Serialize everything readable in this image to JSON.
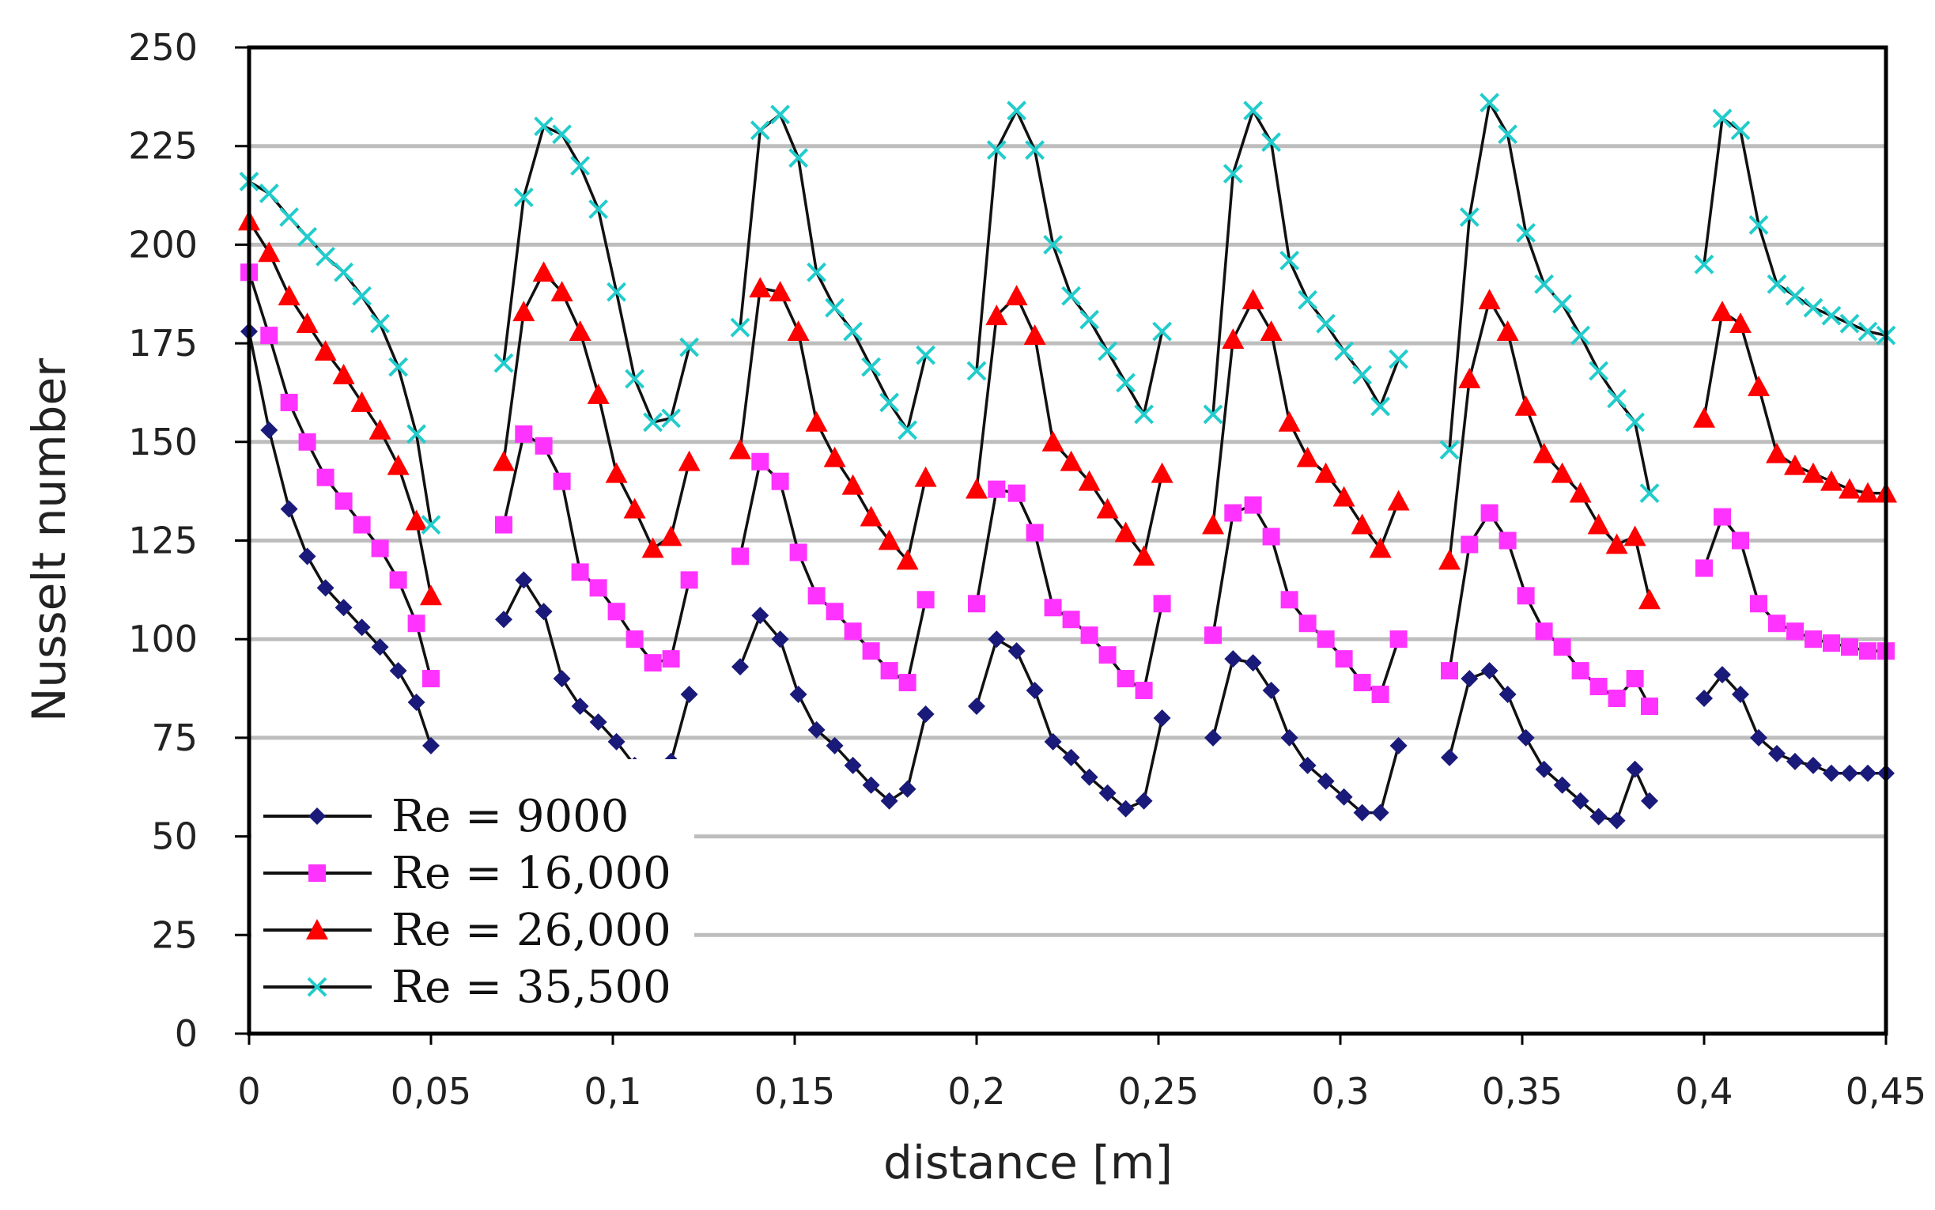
{
  "chart_data": {
    "type": "line",
    "title": "",
    "xlabel": "distance  [m]",
    "ylabel": "Nusselt number",
    "xlim": [
      0,
      0.45
    ],
    "ylim": [
      0,
      250
    ],
    "x_ticks": [
      0,
      0.05,
      0.1,
      0.15,
      0.2,
      0.25,
      0.3,
      0.35,
      0.4,
      0.45
    ],
    "x_tick_labels": [
      "0",
      "0,05",
      "0,1",
      "0,15",
      "0,2",
      "0,25",
      "0,3",
      "0,35",
      "0,4",
      "0,45"
    ],
    "y_ticks": [
      0,
      25,
      50,
      75,
      100,
      125,
      150,
      175,
      200,
      225,
      250
    ],
    "y_tick_labels": [
      "0",
      "25",
      "50",
      "75",
      "100",
      "125",
      "150",
      "175",
      "200",
      "225",
      "250"
    ],
    "grid": "horizontal",
    "legend_position": "bottom-left",
    "x_segments": [
      [
        0,
        0.0055,
        0.011,
        0.016,
        0.021,
        0.026,
        0.031,
        0.036,
        0.041,
        0.046,
        0.05
      ],
      [
        0.07,
        0.0755,
        0.081,
        0.086,
        0.091,
        0.096,
        0.101,
        0.106,
        0.111,
        0.116,
        0.121
      ],
      [
        0.135,
        0.1405,
        0.146,
        0.151,
        0.156,
        0.161,
        0.166,
        0.171,
        0.176,
        0.181,
        0.186
      ],
      [
        0.2,
        0.2055,
        0.211,
        0.216,
        0.221,
        0.226,
        0.231,
        0.236,
        0.241,
        0.246,
        0.251
      ],
      [
        0.265,
        0.2705,
        0.276,
        0.281,
        0.286,
        0.291,
        0.296,
        0.301,
        0.306,
        0.311,
        0.316
      ],
      [
        0.33,
        0.3355,
        0.341,
        0.346,
        0.351,
        0.356,
        0.361,
        0.366,
        0.371,
        0.376,
        0.381,
        0.385
      ],
      [
        0.4,
        0.405,
        0.41,
        0.415,
        0.42,
        0.425,
        0.43,
        0.435,
        0.44,
        0.445,
        0.45
      ]
    ],
    "series": [
      {
        "name": "Re = 9000",
        "color": "#1a1a7a",
        "marker": "diamond",
        "segments": [
          [
            178,
            153,
            133,
            121,
            113,
            108,
            103,
            98,
            92,
            84,
            73
          ],
          [
            105,
            115,
            107,
            90,
            83,
            79,
            74,
            68,
            66,
            69,
            86
          ],
          [
            93,
            106,
            100,
            86,
            77,
            73,
            68,
            63,
            59,
            62,
            81
          ],
          [
            83,
            100,
            97,
            87,
            74,
            70,
            65,
            61,
            57,
            59,
            80
          ],
          [
            75,
            95,
            94,
            87,
            75,
            68,
            64,
            60,
            56,
            56,
            73
          ],
          [
            70,
            90,
            92,
            86,
            75,
            67,
            63,
            59,
            55,
            54,
            67,
            59
          ],
          [
            85,
            91,
            86,
            75,
            71,
            69,
            68,
            66,
            66,
            66,
            66
          ]
        ]
      },
      {
        "name": "Re = 16,000",
        "color": "#ff33ff",
        "marker": "square",
        "segments": [
          [
            193,
            177,
            160,
            150,
            141,
            135,
            129,
            123,
            115,
            104,
            90
          ],
          [
            129,
            152,
            149,
            140,
            117,
            113,
            107,
            100,
            94,
            95,
            115
          ],
          [
            121,
            145,
            140,
            122,
            111,
            107,
            102,
            97,
            92,
            89,
            110
          ],
          [
            109,
            138,
            137,
            127,
            108,
            105,
            101,
            96,
            90,
            87,
            109
          ],
          [
            101,
            132,
            134,
            126,
            110,
            104,
            100,
            95,
            89,
            86,
            100
          ],
          [
            92,
            124,
            132,
            125,
            111,
            102,
            98,
            92,
            88,
            85,
            90,
            83
          ],
          [
            118,
            131,
            125,
            109,
            104,
            102,
            100,
            99,
            98,
            97,
            97
          ]
        ]
      },
      {
        "name": "Re = 26,000",
        "color": "#ff0000",
        "marker": "triangle",
        "segments": [
          [
            206,
            198,
            187,
            180,
            173,
            167,
            160,
            153,
            144,
            130,
            111
          ],
          [
            145,
            183,
            193,
            188,
            178,
            162,
            142,
            133,
            123,
            126,
            145
          ],
          [
            148,
            189,
            188,
            178,
            155,
            146,
            139,
            131,
            125,
            120,
            141
          ],
          [
            138,
            182,
            187,
            177,
            150,
            145,
            140,
            133,
            127,
            121,
            142
          ],
          [
            129,
            176,
            186,
            178,
            155,
            146,
            142,
            136,
            129,
            123,
            135
          ],
          [
            120,
            166,
            186,
            178,
            159,
            147,
            142,
            137,
            129,
            124,
            126,
            110
          ],
          [
            156,
            183,
            180,
            164,
            147,
            144,
            142,
            140,
            138,
            137,
            137
          ]
        ]
      },
      {
        "name": "Re = 35,500",
        "color": "#22cccc",
        "marker": "x",
        "segments": [
          [
            216,
            213,
            207,
            202,
            197,
            193,
            187,
            180,
            169,
            152,
            129
          ],
          [
            170,
            212,
            230,
            228,
            220,
            209,
            188,
            166,
            155,
            156,
            174
          ],
          [
            179,
            229,
            233,
            222,
            193,
            184,
            178,
            169,
            160,
            153,
            172
          ],
          [
            168,
            224,
            234,
            224,
            200,
            187,
            181,
            173,
            165,
            157,
            178
          ],
          [
            157,
            218,
            234,
            226,
            196,
            186,
            180,
            173,
            167,
            159,
            171
          ],
          [
            148,
            207,
            236,
            228,
            203,
            190,
            185,
            177,
            168,
            161,
            155,
            137
          ],
          [
            195,
            232,
            229,
            205,
            190,
            187,
            184,
            182,
            180,
            178,
            177
          ]
        ]
      }
    ]
  }
}
